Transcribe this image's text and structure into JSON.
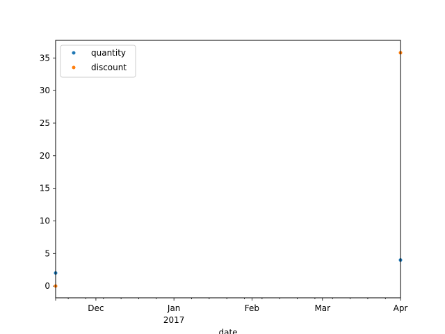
{
  "chart_data": {
    "type": "scatter",
    "title": "",
    "xlabel": "date",
    "ylabel": "",
    "x_axis": {
      "scale": "date",
      "range": [
        "2016-11-15",
        "2017-04-01"
      ],
      "major_ticks": [
        {
          "date": "2016-12-01",
          "label": "Dec",
          "sublabel": ""
        },
        {
          "date": "2017-01-01",
          "label": "Jan",
          "sublabel": "2017"
        },
        {
          "date": "2017-02-01",
          "label": "Feb",
          "sublabel": ""
        },
        {
          "date": "2017-03-01",
          "label": "Mar",
          "sublabel": ""
        },
        {
          "date": "2017-04-01",
          "label": "Apr",
          "sublabel": ""
        }
      ],
      "minor_ticks": [
        "2016-11-20",
        "2016-11-27",
        "2016-12-04",
        "2016-12-11",
        "2016-12-18",
        "2016-12-25",
        "2017-01-08",
        "2017-01-15",
        "2017-01-22",
        "2017-01-29",
        "2017-02-05",
        "2017-02-12",
        "2017-02-19",
        "2017-02-26",
        "2017-03-05",
        "2017-03-12",
        "2017-03-19",
        "2017-03-26"
      ]
    },
    "y_axis": {
      "range": [
        -1.8,
        37.7
      ],
      "ticks": [
        0,
        5,
        10,
        15,
        20,
        25,
        30,
        35
      ]
    },
    "grid": false,
    "legend": {
      "placement": "top-left"
    },
    "series": [
      {
        "name": "quantity",
        "color": "#1f77b4",
        "points": [
          {
            "x": "2016-11-15",
            "y": 2
          },
          {
            "x": "2017-04-01",
            "y": 4
          }
        ]
      },
      {
        "name": "discount",
        "color": "#ff7f0e",
        "points": [
          {
            "x": "2016-11-15",
            "y": 0
          },
          {
            "x": "2017-04-01",
            "y": 35.8
          }
        ]
      }
    ]
  }
}
